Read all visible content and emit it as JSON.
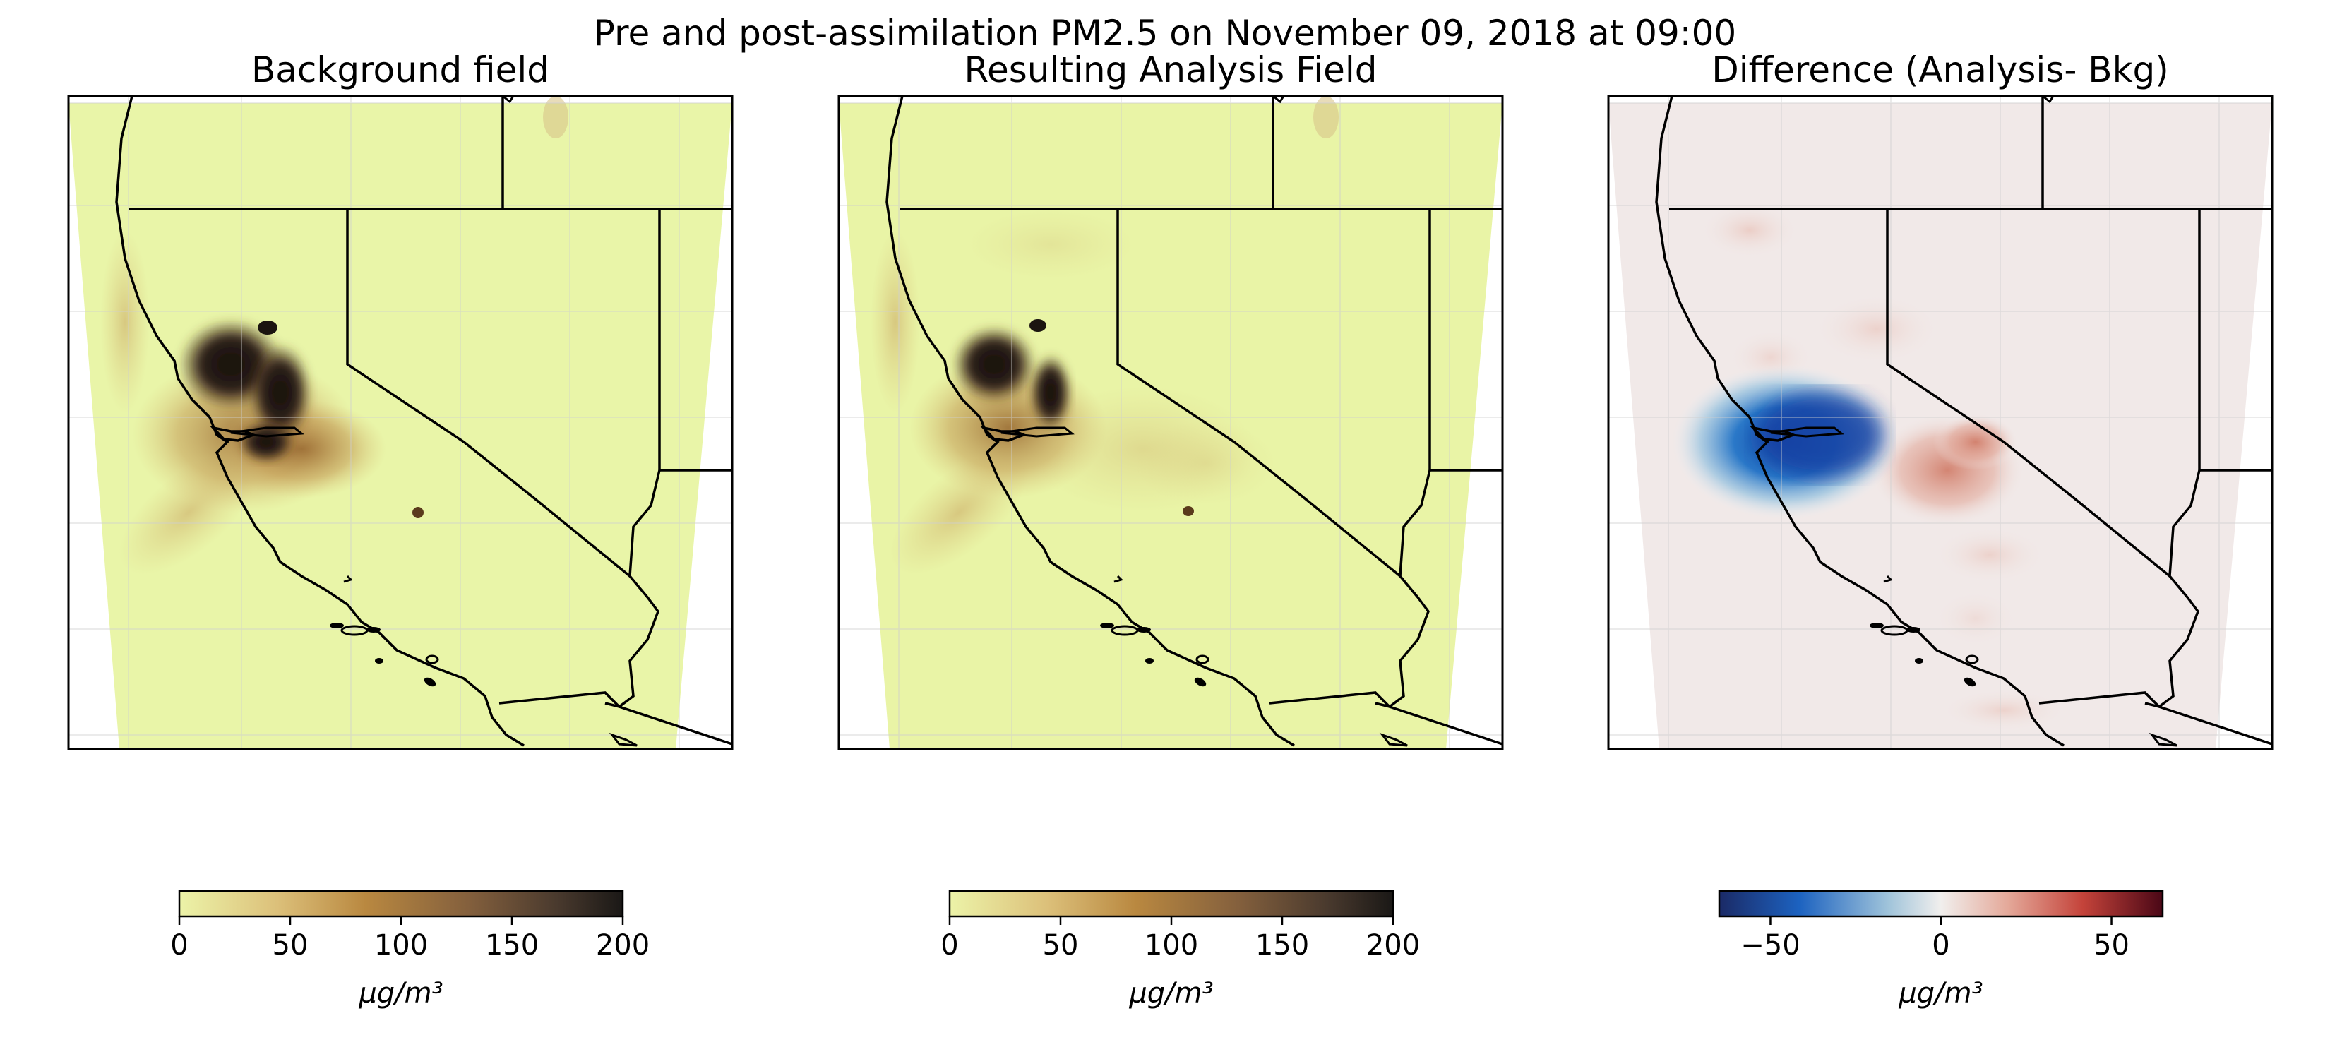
{
  "figure": {
    "suptitle": "Pre and post-assimilation PM2.5 on November 09, 2018 at 09:00"
  },
  "panels": [
    {
      "title": "Background field",
      "colormap": "yellow-brown-black",
      "colorbar": {
        "ticks": [
          "0",
          "50",
          "100",
          "150",
          "200"
        ],
        "vmin": 0,
        "vmax": 200,
        "unit": "μg/m³"
      }
    },
    {
      "title": "Resulting Analysis Field",
      "colormap": "yellow-brown-black",
      "colorbar": {
        "ticks": [
          "0",
          "50",
          "100",
          "150",
          "200"
        ],
        "vmin": 0,
        "vmax": 200,
        "unit": "μg/m³"
      }
    },
    {
      "title": "Difference (Analysis- Bkg)",
      "colormap": "blue-white-red",
      "colorbar": {
        "ticks": [
          "−50",
          "0",
          "50"
        ],
        "tick_values": [
          -50,
          0,
          50
        ],
        "vmin": -65,
        "vmax": 65,
        "unit": "μg/m³"
      }
    }
  ],
  "colors": {
    "field_low": "#e9f5a8",
    "brown_mid": "#b8883e",
    "dark": "#1a1410",
    "diff_bg": "#f1e9e8",
    "diff_blue": "#1f5fb0",
    "diff_red": "#c8604a"
  }
}
